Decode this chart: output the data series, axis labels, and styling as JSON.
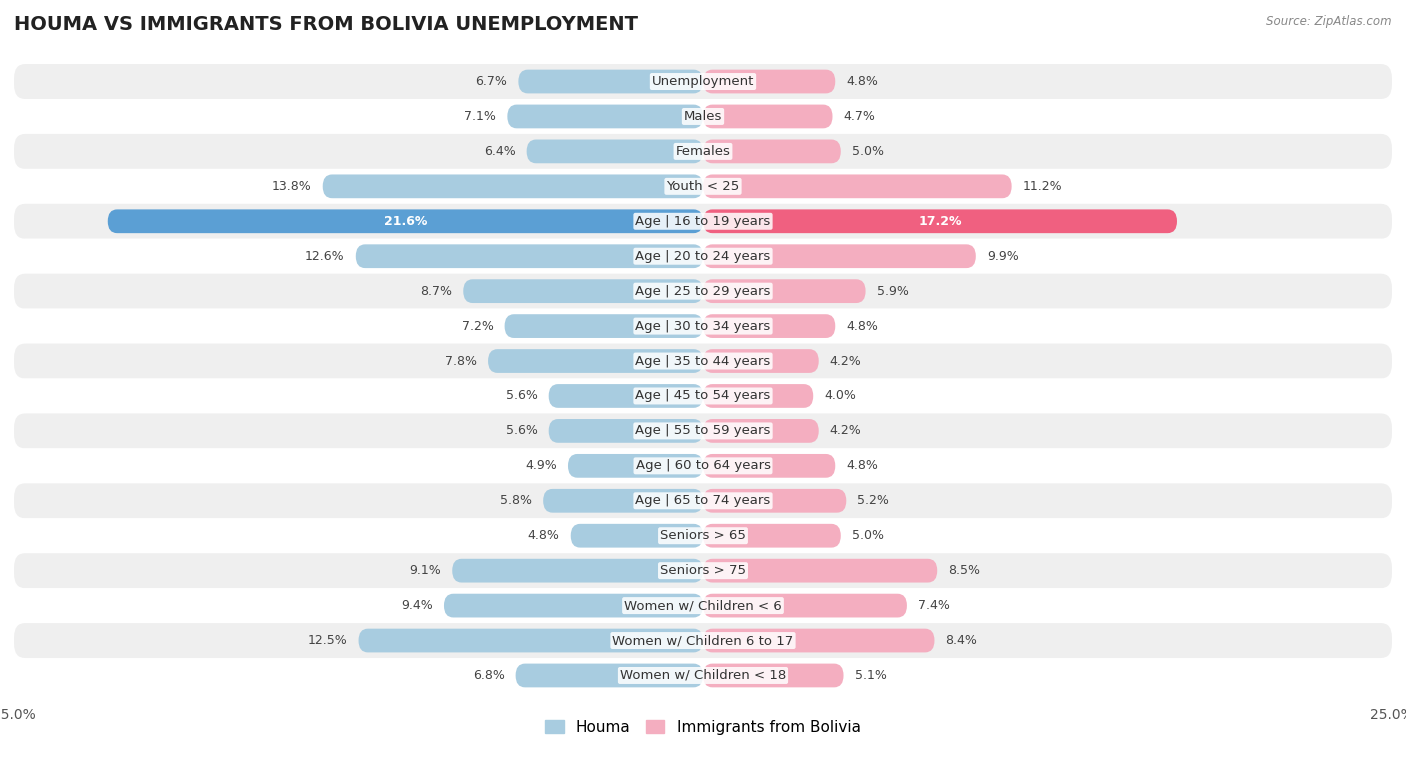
{
  "title": "HOUMA VS IMMIGRANTS FROM BOLIVIA UNEMPLOYMENT",
  "source": "Source: ZipAtlas.com",
  "categories": [
    "Unemployment",
    "Males",
    "Females",
    "Youth < 25",
    "Age | 16 to 19 years",
    "Age | 20 to 24 years",
    "Age | 25 to 29 years",
    "Age | 30 to 34 years",
    "Age | 35 to 44 years",
    "Age | 45 to 54 years",
    "Age | 55 to 59 years",
    "Age | 60 to 64 years",
    "Age | 65 to 74 years",
    "Seniors > 65",
    "Seniors > 75",
    "Women w/ Children < 6",
    "Women w/ Children 6 to 17",
    "Women w/ Children < 18"
  ],
  "houma_values": [
    6.7,
    7.1,
    6.4,
    13.8,
    21.6,
    12.6,
    8.7,
    7.2,
    7.8,
    5.6,
    5.6,
    4.9,
    5.8,
    4.8,
    9.1,
    9.4,
    12.5,
    6.8
  ],
  "bolivia_values": [
    4.8,
    4.7,
    5.0,
    11.2,
    17.2,
    9.9,
    5.9,
    4.8,
    4.2,
    4.0,
    4.2,
    4.8,
    5.2,
    5.0,
    8.5,
    7.4,
    8.4,
    5.1
  ],
  "houma_color": "#a8cce0",
  "bolivia_color": "#f4aec0",
  "houma_highlight_color": "#5b9fd4",
  "bolivia_highlight_color": "#f06080",
  "highlight_row": 4,
  "xlim": 25.0,
  "bar_height": 0.68,
  "bg_color_odd": "#efefef",
  "bg_color_even": "#ffffff",
  "title_fontsize": 14,
  "label_fontsize": 9.5,
  "value_fontsize": 9,
  "legend_houma": "Houma",
  "legend_bolivia": "Immigrants from Bolivia"
}
